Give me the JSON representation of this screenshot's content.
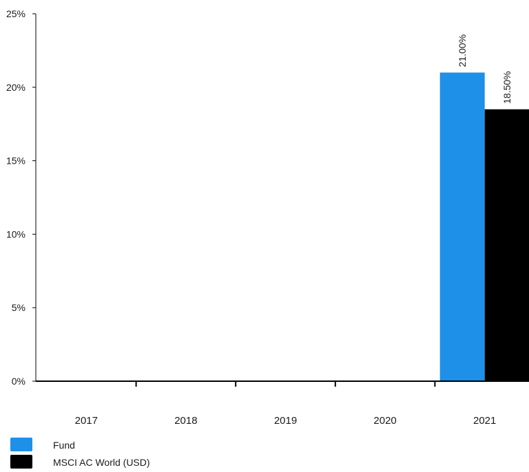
{
  "chart_data": {
    "type": "bar",
    "categories": [
      "2017",
      "2018",
      "2019",
      "2020",
      "2021"
    ],
    "series": [
      {
        "name": "Fund",
        "color": "#1e90e8",
        "values": [
          null,
          null,
          null,
          null,
          21.0
        ],
        "labels": [
          "",
          "",
          "",
          "",
          "21.00%"
        ]
      },
      {
        "name": "MSCI AC World (USD)",
        "color": "#000000",
        "values": [
          null,
          null,
          null,
          null,
          18.5
        ],
        "labels": [
          "",
          "",
          "",
          "",
          "18.50%"
        ]
      }
    ],
    "yticks": [
      "0%",
      "5%",
      "10%",
      "15%",
      "20%",
      "25%"
    ],
    "ytick_values": [
      0,
      5,
      10,
      15,
      20,
      25
    ],
    "ylim": [
      0,
      25
    ],
    "title": "",
    "xlabel": "",
    "ylabel": "",
    "legend_position": "bottom-left"
  }
}
